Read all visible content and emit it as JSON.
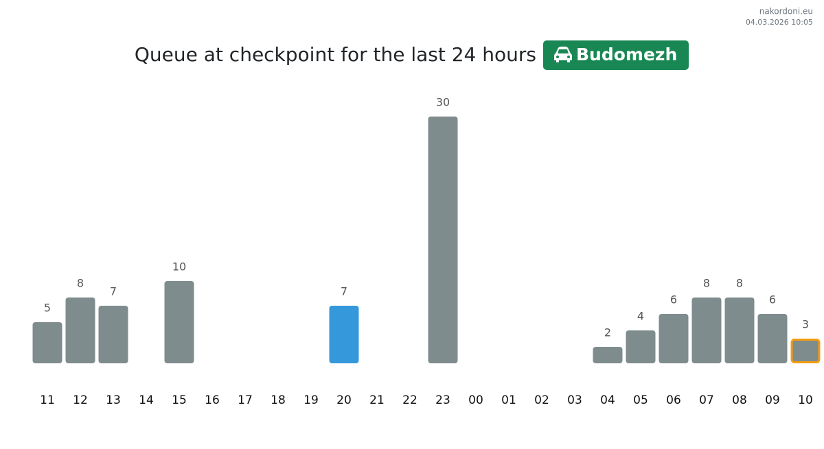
{
  "site": "nakordoni.eu",
  "timestamp": "04.03.2026 10:05",
  "chart_data": {
    "type": "bar",
    "title": "Queue at checkpoint for the last 24 hours",
    "checkpoint": "Budomezh",
    "categories": [
      "11",
      "12",
      "13",
      "14",
      "15",
      "16",
      "17",
      "18",
      "19",
      "20",
      "21",
      "22",
      "23",
      "00",
      "01",
      "02",
      "03",
      "04",
      "05",
      "06",
      "07",
      "08",
      "09",
      "10"
    ],
    "values": [
      5,
      8,
      7,
      null,
      10,
      null,
      null,
      null,
      null,
      7,
      null,
      null,
      30,
      null,
      null,
      null,
      null,
      2,
      4,
      6,
      8,
      8,
      6,
      3
    ],
    "colors": [
      "#7f8c8d",
      "#7f8c8d",
      "#7f8c8d",
      "#7f8c8d",
      "#7f8c8d",
      "#7f8c8d",
      "#7f8c8d",
      "#7f8c8d",
      "#7f8c8d",
      "#3498db",
      "#7f8c8d",
      "#7f8c8d",
      "#7f8c8d",
      "#7f8c8d",
      "#7f8c8d",
      "#7f8c8d",
      "#7f8c8d",
      "#7f8c8d",
      "#7f8c8d",
      "#7f8c8d",
      "#7f8c8d",
      "#7f8c8d",
      "#7f8c8d",
      "#7f8c8d"
    ],
    "outline_colors": [
      null,
      null,
      null,
      null,
      null,
      null,
      null,
      null,
      null,
      null,
      null,
      null,
      null,
      null,
      null,
      null,
      null,
      null,
      null,
      null,
      null,
      null,
      null,
      "#f39c12"
    ],
    "badge_color": "#198754"
  }
}
